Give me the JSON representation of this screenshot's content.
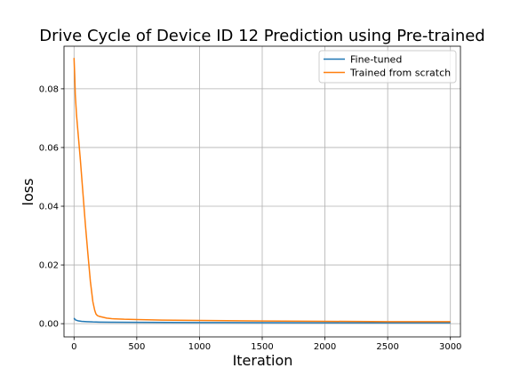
{
  "chart_data": {
    "type": "line",
    "title": "Drive Cycle of Device ID 12 Prediction using Pre-trained",
    "xlabel": "Iteration",
    "ylabel": "loss",
    "xlim": [
      -80,
      3080
    ],
    "ylim": [
      -0.0045,
      0.0945
    ],
    "x_ticks": [
      0,
      500,
      1000,
      1500,
      2000,
      2500,
      3000
    ],
    "y_ticks": [
      0.0,
      0.02,
      0.04,
      0.06,
      0.08
    ],
    "x_tick_labels": [
      "0",
      "500",
      "1000",
      "1500",
      "2000",
      "2500",
      "3000"
    ],
    "y_tick_labels": [
      "0.00",
      "0.02",
      "0.04",
      "0.06",
      "0.08"
    ],
    "grid": true,
    "legend_position": "top-right",
    "series": [
      {
        "name": "Fine-tuned",
        "color": "#1f77b4",
        "x": [
          0,
          10,
          30,
          60,
          100,
          150,
          200,
          300,
          500,
          1000,
          1500,
          2000,
          2500,
          3000
        ],
        "y": [
          0.0019,
          0.0013,
          0.001,
          0.0008,
          0.0007,
          0.0006,
          0.00055,
          0.0005,
          0.00045,
          0.0004,
          0.00035,
          0.0003,
          0.0003,
          0.0003
        ]
      },
      {
        "name": "Trained from scratch",
        "color": "#ff7f0e",
        "x": [
          0,
          5,
          10,
          20,
          30,
          50,
          70,
          90,
          110,
          130,
          150,
          165,
          175,
          185,
          200,
          230,
          260,
          300,
          400,
          500,
          700,
          1000,
          1500,
          2000,
          2500,
          3000
        ],
        "y": [
          0.0905,
          0.085,
          0.078,
          0.071,
          0.066,
          0.056,
          0.045,
          0.034,
          0.024,
          0.0145,
          0.0075,
          0.0045,
          0.0033,
          0.0028,
          0.0025,
          0.0022,
          0.0019,
          0.0017,
          0.0015,
          0.0014,
          0.0012,
          0.0011,
          0.0009,
          0.0008,
          0.0007,
          0.0007
        ]
      }
    ]
  }
}
